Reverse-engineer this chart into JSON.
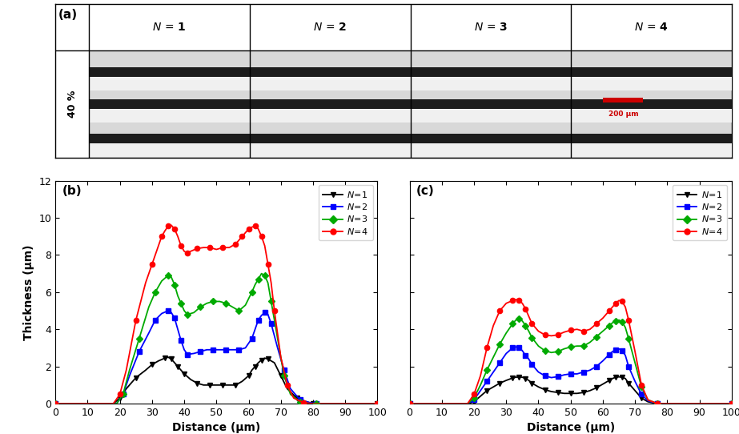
{
  "panel_a_label": "(a)",
  "panel_b_label": "(b)",
  "panel_c_label": "(c)",
  "col_labels": [
    "N = 1",
    "N = 2",
    "N = 3",
    "N = 4"
  ],
  "row_label": "40 %",
  "scale_bar_text": "200 μm",
  "xlabel": "Distance (μm)",
  "ylabel": "Thickness (μm)",
  "ylim": [
    0,
    12
  ],
  "xlim": [
    0,
    100
  ],
  "yticks": [
    0,
    2,
    4,
    6,
    8,
    10,
    12
  ],
  "xticks": [
    0,
    10,
    20,
    30,
    40,
    50,
    60,
    70,
    80,
    90,
    100
  ],
  "colors": {
    "N1": "#000000",
    "N2": "#0000ff",
    "N3": "#00aa00",
    "N4": "#ff0000"
  },
  "b_N1_x": [
    0,
    18,
    20,
    22,
    25,
    28,
    30,
    32,
    34,
    35,
    36,
    37,
    38,
    39,
    40,
    42,
    44,
    46,
    48,
    50,
    52,
    54,
    56,
    58,
    60,
    61,
    62,
    63,
    64,
    65,
    66,
    68,
    70,
    72,
    75,
    78,
    80,
    82,
    100
  ],
  "b_N1_y": [
    0,
    0,
    0.3,
    0.8,
    1.4,
    1.8,
    2.1,
    2.3,
    2.45,
    2.5,
    2.4,
    2.2,
    2.0,
    1.8,
    1.6,
    1.3,
    1.1,
    1.0,
    1.0,
    1.0,
    1.0,
    1.0,
    1.0,
    1.2,
    1.5,
    1.8,
    2.0,
    2.2,
    2.35,
    2.45,
    2.4,
    2.2,
    1.5,
    0.8,
    0.3,
    0.1,
    0.0,
    0,
    0
  ],
  "b_N2_x": [
    0,
    19,
    21,
    23,
    26,
    29,
    31,
    33,
    35,
    36,
    37,
    38,
    39,
    40,
    41,
    43,
    45,
    47,
    49,
    51,
    53,
    55,
    57,
    59,
    61,
    62,
    63,
    64,
    65,
    66,
    67,
    69,
    71,
    73,
    76,
    79,
    81,
    100
  ],
  "b_N2_y": [
    0,
    0,
    0.5,
    1.5,
    2.8,
    3.8,
    4.5,
    4.85,
    5.0,
    4.9,
    4.6,
    4.0,
    3.4,
    2.9,
    2.65,
    2.7,
    2.8,
    2.9,
    2.9,
    2.9,
    2.9,
    2.9,
    2.9,
    3.0,
    3.5,
    4.0,
    4.5,
    4.75,
    4.9,
    4.8,
    4.3,
    3.0,
    1.8,
    0.8,
    0.2,
    0.05,
    0,
    0
  ],
  "b_N3_x": [
    0,
    19,
    21,
    23,
    26,
    29,
    31,
    33,
    35,
    36,
    37,
    38,
    39,
    40,
    41,
    43,
    45,
    47,
    49,
    51,
    53,
    55,
    57,
    59,
    61,
    62,
    63,
    64,
    65,
    66,
    67,
    69,
    71,
    73,
    76,
    79,
    81,
    100
  ],
  "b_N3_y": [
    0,
    0,
    0.5,
    1.8,
    3.5,
    5.2,
    6.0,
    6.6,
    6.9,
    6.8,
    6.4,
    5.8,
    5.4,
    5.0,
    4.8,
    4.9,
    5.2,
    5.4,
    5.5,
    5.5,
    5.4,
    5.2,
    5.0,
    5.3,
    6.0,
    6.4,
    6.7,
    7.0,
    6.9,
    6.5,
    5.5,
    3.5,
    1.5,
    0.5,
    0.1,
    0,
    0,
    0
  ],
  "b_N4_x": [
    0,
    18,
    20,
    22,
    25,
    28,
    30,
    32,
    33,
    34,
    35,
    36,
    37,
    38,
    39,
    40,
    41,
    42,
    44,
    46,
    48,
    50,
    52,
    54,
    56,
    57,
    58,
    59,
    60,
    61,
    62,
    63,
    64,
    65,
    66,
    67,
    68,
    70,
    72,
    74,
    77,
    80,
    100
  ],
  "b_N4_y": [
    0,
    0,
    0.5,
    1.8,
    4.5,
    6.5,
    7.5,
    8.5,
    9.0,
    9.3,
    9.55,
    9.6,
    9.4,
    9.0,
    8.5,
    8.2,
    8.1,
    8.2,
    8.35,
    8.4,
    8.4,
    8.3,
    8.4,
    8.4,
    8.6,
    8.8,
    9.0,
    9.2,
    9.4,
    9.5,
    9.55,
    9.4,
    9.0,
    8.5,
    7.5,
    6.5,
    5.0,
    2.5,
    1.0,
    0.3,
    0.05,
    0,
    0
  ],
  "c_N1_x": [
    0,
    18,
    20,
    22,
    24,
    26,
    28,
    30,
    32,
    33,
    34,
    35,
    36,
    37,
    38,
    40,
    42,
    44,
    46,
    48,
    50,
    52,
    54,
    56,
    58,
    60,
    62,
    63,
    64,
    65,
    66,
    67,
    68,
    70,
    72,
    74,
    77,
    80,
    100
  ],
  "c_N1_y": [
    0,
    0,
    0.1,
    0.4,
    0.7,
    0.9,
    1.1,
    1.25,
    1.38,
    1.42,
    1.44,
    1.42,
    1.35,
    1.25,
    1.1,
    0.9,
    0.75,
    0.65,
    0.6,
    0.55,
    0.55,
    0.55,
    0.6,
    0.7,
    0.85,
    1.05,
    1.25,
    1.35,
    1.42,
    1.44,
    1.42,
    1.35,
    1.1,
    0.7,
    0.3,
    0.1,
    0,
    0,
    0
  ],
  "c_N2_x": [
    0,
    18,
    20,
    22,
    24,
    26,
    28,
    30,
    32,
    33,
    34,
    35,
    36,
    37,
    38,
    40,
    42,
    44,
    46,
    48,
    50,
    52,
    54,
    56,
    58,
    60,
    62,
    63,
    64,
    65,
    66,
    67,
    68,
    70,
    72,
    74,
    77,
    80,
    100
  ],
  "c_N2_y": [
    0,
    0,
    0.2,
    0.7,
    1.2,
    1.7,
    2.2,
    2.7,
    3.0,
    3.05,
    3.0,
    2.85,
    2.6,
    2.4,
    2.1,
    1.7,
    1.5,
    1.4,
    1.45,
    1.55,
    1.6,
    1.6,
    1.7,
    1.8,
    2.0,
    2.3,
    2.65,
    2.8,
    2.9,
    2.95,
    2.85,
    2.6,
    2.0,
    1.2,
    0.5,
    0.15,
    0,
    0,
    0
  ],
  "c_N3_x": [
    0,
    18,
    20,
    22,
    24,
    26,
    28,
    30,
    32,
    33,
    34,
    35,
    36,
    37,
    38,
    40,
    42,
    44,
    46,
    48,
    50,
    52,
    54,
    56,
    58,
    60,
    62,
    63,
    64,
    65,
    66,
    67,
    68,
    70,
    72,
    74,
    77,
    80,
    100
  ],
  "c_N3_y": [
    0,
    0,
    0.3,
    1.0,
    1.8,
    2.5,
    3.2,
    3.8,
    4.3,
    4.5,
    4.55,
    4.45,
    4.2,
    3.9,
    3.55,
    3.1,
    2.85,
    2.75,
    2.8,
    2.95,
    3.05,
    3.1,
    3.1,
    3.3,
    3.6,
    3.9,
    4.2,
    4.35,
    4.45,
    4.5,
    4.4,
    4.1,
    3.5,
    2.2,
    0.9,
    0.2,
    0,
    0,
    0
  ],
  "c_N4_x": [
    0,
    18,
    20,
    22,
    24,
    26,
    28,
    30,
    32,
    33,
    34,
    35,
    36,
    37,
    38,
    40,
    42,
    44,
    46,
    48,
    50,
    52,
    54,
    56,
    58,
    60,
    62,
    63,
    64,
    65,
    66,
    67,
    68,
    70,
    72,
    74,
    77,
    80,
    100
  ],
  "c_N4_y": [
    0,
    0,
    0.5,
    1.5,
    3.0,
    4.2,
    5.0,
    5.4,
    5.55,
    5.6,
    5.55,
    5.4,
    5.1,
    4.7,
    4.3,
    3.9,
    3.7,
    3.65,
    3.7,
    3.85,
    3.95,
    4.0,
    3.9,
    4.0,
    4.3,
    4.6,
    5.0,
    5.2,
    5.4,
    5.55,
    5.5,
    5.2,
    4.5,
    2.8,
    1.0,
    0.2,
    0,
    0,
    0
  ]
}
